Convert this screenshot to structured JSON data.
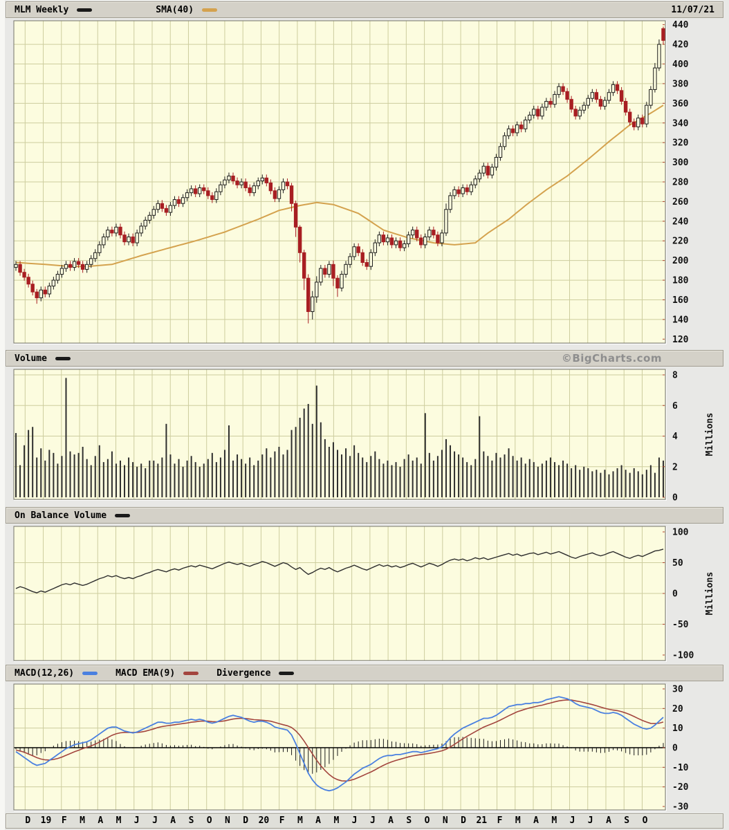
{
  "header": {
    "title": "MLM Weekly",
    "sma_label": "SMA(40)",
    "date": "11/07/21"
  },
  "volume_header": {
    "label": "Volume",
    "brand": "©BigCharts.com"
  },
  "obv_header": {
    "label": "On Balance Volume"
  },
  "macd_header": {
    "macd_label": "MACD(12,26)",
    "ema_label": "MACD EMA(9)",
    "divergence_label": "Divergence"
  },
  "colors": {
    "plot_bg": "#FCFCDF",
    "grid": "#CDCD9E",
    "border": "#75756A",
    "candle_down": "#A81E22",
    "candle_up_stroke": "#1C1C1C",
    "sma": "#D4A24E",
    "line": "#2E2E2E",
    "macd_blue": "#4A80E0",
    "macd_red": "#A3453E",
    "price_series": "#1A1A1A",
    "volume_series": "#1A1A1A",
    "obv_series": "#1A1A1A",
    "divergence": "#1A1A1A",
    "axis_tick_red": "#B0402E"
  },
  "x_axis": {
    "tick_labels": [
      "D",
      "19",
      "F",
      "M",
      "A",
      "M",
      "J",
      "J",
      "A",
      "S",
      "O",
      "N",
      "D",
      "20",
      "F",
      "M",
      "A",
      "M",
      "J",
      "J",
      "A",
      "S",
      "O",
      "N",
      "D",
      "21",
      "F",
      "M",
      "A",
      "M",
      "J",
      "J",
      "A",
      "S",
      "O"
    ],
    "first_tick_week": 2.7,
    "weeks_per_month": 4.3455,
    "n_weeks": 156
  },
  "chart_data": [
    {
      "type": "candlestick",
      "title": "MLM Weekly",
      "overlay": "SMA(40)",
      "ylim": [
        120,
        440
      ],
      "y_ticks": [
        440,
        420,
        400,
        380,
        360,
        340,
        320,
        300,
        280,
        260,
        240,
        220,
        200,
        180,
        160,
        140,
        120
      ],
      "first_open": 193,
      "closes": [
        196,
        188,
        183,
        176,
        168,
        162,
        170,
        166,
        174,
        180,
        186,
        192,
        196,
        193,
        199,
        196,
        191,
        196,
        202,
        208,
        216,
        224,
        231,
        228,
        234,
        226,
        219,
        224,
        218,
        228,
        235,
        241,
        246,
        252,
        258,
        253,
        249,
        256,
        262,
        258,
        264,
        269,
        273,
        268,
        274,
        271,
        266,
        262,
        270,
        277,
        282,
        286,
        281,
        277,
        280,
        274,
        269,
        276,
        281,
        284,
        279,
        271,
        263,
        272,
        280,
        276,
        258,
        234,
        208,
        182,
        148,
        163,
        178,
        192,
        186,
        196,
        182,
        172,
        186,
        196,
        204,
        214,
        208,
        198,
        194,
        208,
        218,
        226,
        219,
        223,
        216,
        220,
        213,
        217,
        226,
        231,
        223,
        216,
        224,
        231,
        226,
        218,
        228,
        252,
        266,
        272,
        268,
        274,
        270,
        277,
        283,
        289,
        296,
        287,
        295,
        305,
        316,
        327,
        334,
        330,
        338,
        334,
        343,
        348,
        354,
        347,
        356,
        362,
        359,
        369,
        377,
        372,
        364,
        354,
        347,
        353,
        358,
        365,
        371,
        364,
        357,
        363,
        371,
        379,
        373,
        362,
        351,
        341,
        336,
        345,
        339,
        358,
        374,
        396,
        420,
        424
      ],
      "open_overrides": {
        "155": 436
      },
      "default_wick": 3.5,
      "wick_overrides": {
        "5": [
          3,
          6
        ],
        "66": [
          3,
          8
        ],
        "67": [
          3,
          10
        ],
        "68": [
          2,
          10
        ],
        "69": [
          3,
          12
        ],
        "70": [
          4,
          12
        ],
        "71": [
          6,
          8
        ],
        "72": [
          6,
          6
        ],
        "76": [
          4,
          8
        ],
        "77": [
          3,
          9
        ],
        "103": [
          6,
          3
        ],
        "153": [
          5,
          3
        ],
        "154": [
          5,
          3
        ],
        "155": [
          2,
          4
        ]
      },
      "sma40_points": [
        [
          0,
          198
        ],
        [
          7,
          196
        ],
        [
          13,
          194
        ],
        [
          17,
          194
        ],
        [
          23,
          196
        ],
        [
          30,
          205
        ],
        [
          36,
          212
        ],
        [
          43,
          220
        ],
        [
          50,
          229
        ],
        [
          58,
          242
        ],
        [
          63,
          251
        ],
        [
          68,
          256
        ],
        [
          72,
          259
        ],
        [
          76,
          257
        ],
        [
          82,
          248
        ],
        [
          88,
          231
        ],
        [
          94,
          223
        ],
        [
          100,
          218
        ],
        [
          105,
          216
        ],
        [
          110,
          218
        ],
        [
          113,
          228
        ],
        [
          118,
          242
        ],
        [
          122,
          256
        ],
        [
          127,
          272
        ],
        [
          132,
          286
        ],
        [
          137,
          303
        ],
        [
          142,
          321
        ],
        [
          147,
          338
        ],
        [
          152,
          350
        ],
        [
          155,
          358
        ]
      ]
    },
    {
      "type": "bar",
      "title": "Volume",
      "ylabel": "Millions",
      "ylim": [
        0,
        8
      ],
      "y_ticks": [
        8,
        6,
        4,
        2,
        0
      ],
      "values": [
        4.2,
        2.1,
        3.4,
        4.4,
        4.6,
        2.6,
        3.2,
        2.4,
        3.1,
        2.9,
        2.2,
        2.7,
        7.8,
        3.0,
        2.8,
        2.9,
        3.3,
        2.5,
        2.1,
        2.7,
        3.4,
        2.3,
        2.5,
        3.0,
        2.2,
        2.4,
        2.1,
        2.6,
        2.3,
        2.0,
        2.2,
        1.9,
        2.4,
        2.4,
        2.2,
        2.6,
        4.8,
        2.8,
        2.2,
        2.5,
        2.0,
        2.4,
        2.7,
        2.3,
        2.0,
        2.2,
        2.5,
        2.9,
        2.3,
        2.6,
        3.1,
        4.7,
        2.4,
        2.8,
        2.5,
        2.2,
        2.6,
        2.1,
        2.4,
        2.8,
        3.2,
        2.6,
        3.0,
        3.3,
        2.8,
        3.1,
        4.4,
        4.6,
        5.2,
        5.8,
        6.1,
        4.8,
        7.3,
        4.9,
        3.8,
        3.3,
        3.6,
        3.1,
        2.8,
        3.2,
        2.7,
        3.4,
        2.9,
        2.6,
        2.3,
        2.7,
        3.0,
        2.5,
        2.2,
        2.4,
        2.1,
        2.3,
        2.0,
        2.5,
        2.8,
        2.4,
        2.6,
        2.2,
        5.5,
        2.9,
        2.4,
        2.7,
        3.1,
        3.8,
        3.4,
        3.0,
        2.8,
        2.6,
        2.3,
        2.1,
        2.5,
        5.3,
        3.0,
        2.7,
        2.4,
        2.9,
        2.6,
        2.8,
        3.2,
        2.7,
        2.4,
        2.6,
        2.2,
        2.5,
        2.3,
        2.0,
        2.2,
        2.4,
        2.6,
        2.3,
        2.1,
        2.4,
        2.2,
        1.9,
        2.1,
        1.8,
        2.0,
        1.9,
        1.7,
        1.8,
        1.6,
        1.8,
        1.5,
        1.7,
        1.9,
        2.1,
        1.8,
        1.6,
        1.9,
        1.7,
        1.5,
        1.8,
        2.1,
        1.6,
        2.6,
        2.4
      ]
    },
    {
      "type": "line",
      "title": "On Balance Volume",
      "ylabel": "Millions",
      "ylim": [
        -100,
        100
      ],
      "y_ticks": [
        100,
        50,
        0,
        -50,
        -100
      ],
      "values": [
        8,
        11,
        9,
        6,
        3,
        1,
        4,
        2,
        5,
        8,
        11,
        14,
        16,
        14,
        17,
        15,
        13,
        15,
        18,
        21,
        24,
        26,
        29,
        27,
        29,
        26,
        24,
        26,
        24,
        27,
        29,
        32,
        34,
        37,
        39,
        37,
        35,
        38,
        40,
        38,
        41,
        43,
        45,
        43,
        46,
        44,
        42,
        40,
        43,
        46,
        49,
        51,
        49,
        47,
        49,
        46,
        44,
        47,
        49,
        52,
        50,
        47,
        44,
        47,
        50,
        48,
        43,
        39,
        42,
        36,
        31,
        34,
        38,
        41,
        39,
        42,
        38,
        35,
        38,
        41,
        43,
        46,
        43,
        40,
        38,
        41,
        44,
        47,
        44,
        46,
        43,
        45,
        42,
        44,
        47,
        49,
        46,
        43,
        46,
        49,
        47,
        44,
        47,
        51,
        54,
        56,
        54,
        56,
        53,
        55,
        58,
        56,
        58,
        55,
        57,
        59,
        61,
        63,
        65,
        62,
        64,
        61,
        63,
        65,
        66,
        63,
        65,
        67,
        64,
        66,
        68,
        65,
        62,
        59,
        57,
        60,
        62,
        64,
        66,
        63,
        61,
        63,
        66,
        68,
        65,
        62,
        59,
        57,
        60,
        62,
        60,
        63,
        66,
        69,
        70,
        72
      ]
    },
    {
      "type": "line+histogram",
      "title": "MACD",
      "ylim": [
        -30,
        30
      ],
      "y_ticks": [
        30,
        20,
        10,
        0,
        -10,
        -20,
        -30
      ],
      "series": [
        {
          "name": "MACD(12,26)",
          "values": [
            -2,
            -3.5,
            -5,
            -6.5,
            -8,
            -9,
            -8.5,
            -8,
            -6.5,
            -5,
            -3.5,
            -2,
            -0.5,
            0.5,
            1.5,
            2,
            2.5,
            3,
            4,
            5.5,
            7,
            8.5,
            10,
            10.5,
            10.5,
            9.5,
            8.5,
            8,
            7.5,
            8,
            9,
            10,
            11,
            12,
            13,
            13,
            12.5,
            12.5,
            13,
            13,
            13.5,
            14,
            14.5,
            14,
            14.5,
            14,
            13,
            12.5,
            13,
            14,
            15,
            16,
            16.5,
            16,
            15.5,
            14.5,
            13.5,
            13,
            13.5,
            13.5,
            13,
            12,
            10.5,
            10,
            9.5,
            9,
            6.5,
            2,
            -3,
            -8,
            -13,
            -16.5,
            -19,
            -20.5,
            -21.5,
            -22,
            -21.5,
            -20.5,
            -19,
            -17.5,
            -15.5,
            -13.5,
            -12,
            -10.5,
            -9.5,
            -8.5,
            -7,
            -5.5,
            -4.5,
            -4,
            -4,
            -3.5,
            -3.5,
            -3,
            -2.5,
            -2,
            -2,
            -2.5,
            -2,
            -1.5,
            -1,
            -0.5,
            0.5,
            2.5,
            5,
            7,
            8.5,
            10,
            11,
            12,
            13,
            14,
            15,
            15,
            15.5,
            16.5,
            18,
            19.5,
            21,
            21.5,
            22,
            22,
            22.5,
            22.5,
            23,
            23,
            23.5,
            24.5,
            25,
            25.5,
            26,
            25.5,
            25,
            24,
            22.5,
            21.5,
            21,
            20.5,
            20,
            19,
            18,
            17.5,
            17.5,
            18,
            17.5,
            16.5,
            15,
            13.5,
            12,
            11,
            10,
            9.5,
            10,
            11.5,
            13.5,
            15.5
          ]
        },
        {
          "name": "MACD EMA(9)",
          "values": [
            -1.2,
            -1.7,
            -2.3,
            -3.2,
            -4.1,
            -5.1,
            -5.8,
            -6.2,
            -6.3,
            -6,
            -5.5,
            -4.8,
            -3.9,
            -3,
            -2.1,
            -1.3,
            -0.5,
            0.2,
            0.9,
            1.8,
            2.9,
            4,
            5.2,
            6.3,
            7.1,
            7.6,
            7.8,
            7.8,
            7.8,
            7.8,
            8,
            8.4,
            9,
            9.6,
            10.3,
            10.8,
            11.1,
            11.4,
            11.7,
            12,
            12.3,
            12.6,
            13,
            13.2,
            13.5,
            13.6,
            13.5,
            13.3,
            13.2,
            13.4,
            13.7,
            14.2,
            14.6,
            14.9,
            15,
            14.9,
            14.6,
            14.3,
            14.2,
            14,
            13.8,
            13.5,
            12.9,
            12.3,
            11.7,
            11.2,
            10.3,
            8.6,
            6.3,
            3.4,
            0.1,
            -3.2,
            -6.4,
            -9.2,
            -11.6,
            -13.7,
            -15.3,
            -16.3,
            -16.9,
            -17,
            -16.7,
            -16.1,
            -15.2,
            -14.3,
            -13.3,
            -12.4,
            -11.3,
            -10.1,
            -9,
            -8,
            -7.2,
            -6.5,
            -5.9,
            -5.3,
            -4.7,
            -4.2,
            -3.8,
            -3.5,
            -3.2,
            -2.9,
            -2.5,
            -2.1,
            -1.6,
            -0.8,
            0.4,
            1.7,
            3.1,
            4.5,
            5.8,
            7,
            8.2,
            9.4,
            10.5,
            11.4,
            12.2,
            13.1,
            14.1,
            15.2,
            16.3,
            17.3,
            18.3,
            19,
            19.7,
            20.3,
            20.8,
            21.3,
            21.7,
            22.3,
            22.8,
            23.4,
            23.9,
            24.2,
            24.4,
            24.3,
            23.9,
            23.5,
            23,
            22.5,
            22,
            21.4,
            20.7,
            20.1,
            19.6,
            19.2,
            18.9,
            18.4,
            17.7,
            16.9,
            15.9,
            14.9,
            13.9,
            13.1,
            12.4,
            12.3,
            12.5,
            13.1
          ]
        },
        {
          "name": "Divergence",
          "values_rule": "macd_minus_ema"
        }
      ]
    }
  ]
}
